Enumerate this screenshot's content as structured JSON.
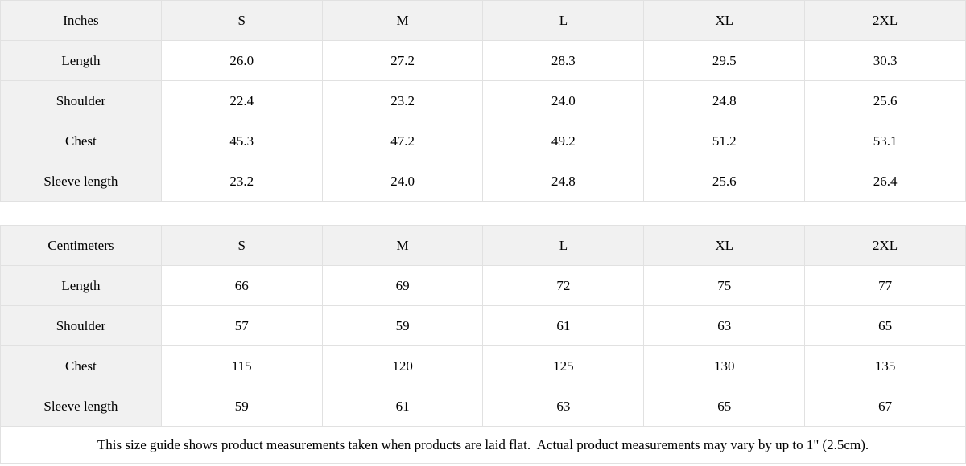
{
  "colors": {
    "header_bg": "#f1f1f1",
    "border": "#e1e1e1",
    "text": "#000000"
  },
  "tables": [
    {
      "unit": "Inches",
      "header": [
        "Inches",
        "S",
        "M",
        "L",
        "XL",
        "2XL"
      ],
      "rows": [
        {
          "label": "Length",
          "values": [
            "26.0",
            "27.2",
            "28.3",
            "29.5",
            "30.3"
          ]
        },
        {
          "label": "Shoulder",
          "values": [
            "22.4",
            "23.2",
            "24.0",
            "24.8",
            "25.6"
          ]
        },
        {
          "label": "Chest",
          "values": [
            "45.3",
            "47.2",
            "49.2",
            "51.2",
            "53.1"
          ]
        },
        {
          "label": "Sleeve length",
          "values": [
            "23.2",
            "24.0",
            "24.8",
            "25.6",
            "26.4"
          ]
        }
      ]
    },
    {
      "unit": "Centimeters",
      "header": [
        "Centimeters",
        "S",
        "M",
        "L",
        "XL",
        "2XL"
      ],
      "rows": [
        {
          "label": "Length",
          "values": [
            "66",
            "69",
            "72",
            "75",
            "77"
          ]
        },
        {
          "label": "Shoulder",
          "values": [
            "57",
            "59",
            "61",
            "63",
            "65"
          ]
        },
        {
          "label": "Chest",
          "values": [
            "115",
            "120",
            "125",
            "130",
            "135"
          ]
        },
        {
          "label": "Sleeve length",
          "values": [
            "59",
            "61",
            "63",
            "65",
            "67"
          ]
        }
      ]
    }
  ],
  "note": "This size guide shows product measurements taken when products are laid flat.  Actual product measurements may vary by up to 1\" (2.5cm).",
  "chart_data": [
    {
      "type": "table",
      "title": "Size guide (Inches)",
      "columns": [
        "Inches",
        "S",
        "M",
        "L",
        "XL",
        "2XL"
      ],
      "rows": [
        [
          "Length",
          26.0,
          27.2,
          28.3,
          29.5,
          30.3
        ],
        [
          "Shoulder",
          22.4,
          23.2,
          24.0,
          24.8,
          25.6
        ],
        [
          "Chest",
          45.3,
          47.2,
          49.2,
          51.2,
          53.1
        ],
        [
          "Sleeve length",
          23.2,
          24.0,
          24.8,
          25.6,
          26.4
        ]
      ]
    },
    {
      "type": "table",
      "title": "Size guide (Centimeters)",
      "columns": [
        "Centimeters",
        "S",
        "M",
        "L",
        "XL",
        "2XL"
      ],
      "rows": [
        [
          "Length",
          66,
          69,
          72,
          75,
          77
        ],
        [
          "Shoulder",
          57,
          59,
          61,
          63,
          65
        ],
        [
          "Chest",
          115,
          120,
          125,
          130,
          135
        ],
        [
          "Sleeve length",
          59,
          61,
          63,
          65,
          67
        ]
      ]
    }
  ]
}
